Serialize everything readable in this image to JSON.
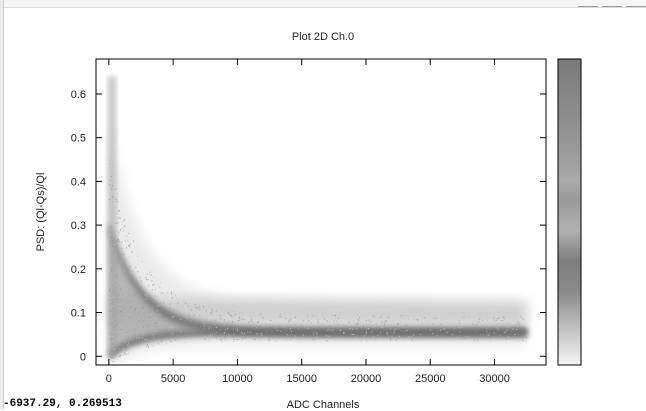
{
  "chart_data": {
    "type": "heatmap",
    "title": "Plot 2D Ch.0",
    "xlabel": "ADC Channels",
    "ylabel": "PSD: (Ql-Qs)/Ql",
    "xlim": [
      -1000,
      34000
    ],
    "ylim": [
      -0.02,
      0.68
    ],
    "x_ticks": [
      0,
      5000,
      10000,
      15000,
      20000,
      25000,
      30000
    ],
    "y_ticks": [
      0,
      0.1,
      0.2,
      0.3,
      0.4,
      0.5,
      0.6
    ],
    "grid": false,
    "colorbar": true,
    "colormap": "grayscale",
    "bands": [
      {
        "x_start": 0,
        "x_end": 32500,
        "y_start": 0.3,
        "y_end": 0.055
      },
      {
        "x_start": 0,
        "x_end": 32500,
        "y_start": 0.0,
        "y_end": 0.055
      },
      {
        "x_start": 0,
        "x_end": 32500,
        "y_start": 0.1,
        "y_end": 0.09
      }
    ]
  },
  "status": {
    "cursor_readout": "-6937.29,  0.269513"
  },
  "colors": {
    "frame": "#000000",
    "band_dark": "#6e6e6e",
    "band_light": "#c8c8c8"
  }
}
